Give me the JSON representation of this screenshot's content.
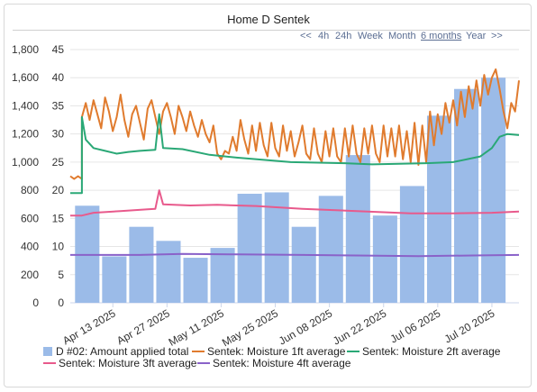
{
  "title": "Home D Sentek",
  "range_nav": {
    "back": "<<",
    "options": [
      "4h",
      "24h",
      "Week",
      "Month",
      "6 months",
      "Year"
    ],
    "active": "6 months",
    "forward": ">>"
  },
  "chart_data": {
    "type": "bar+line",
    "title": "Home D Sentek",
    "x_axis": {
      "type": "date",
      "range": [
        "2025-04-02",
        "2025-07-27"
      ],
      "tick_labels": [
        "Apr 13 2025",
        "Apr 27 2025",
        "May 11 2025",
        "May 25 2025",
        "Jun 08 2025",
        "Jun 22 2025",
        "Jul 06 2025",
        "Jul 20 2025"
      ],
      "tick_dates": [
        "2025-04-13",
        "2025-04-27",
        "2025-05-11",
        "2025-05-25",
        "2025-06-08",
        "2025-06-22",
        "2025-07-06",
        "2025-07-20"
      ]
    },
    "y_axis_left": {
      "ticks": [
        "0",
        "200",
        "400",
        "600",
        "800",
        "1,000",
        "1,200",
        "1,400",
        "1,600",
        "1,800"
      ],
      "range": [
        0,
        1800
      ]
    },
    "y_axis_right": {
      "ticks": [
        "0",
        "5",
        "10",
        "15",
        "20",
        "25",
        "30",
        "35",
        "40",
        "45"
      ],
      "range": [
        0,
        45
      ]
    },
    "grid": true,
    "legend_position": "bottom",
    "bars": {
      "name": "D #02: Amount applied total",
      "color": "#9bbbe8",
      "axis": "left",
      "weeks": [
        {
          "start": "2025-04-03",
          "end": "2025-04-09",
          "value": 690
        },
        {
          "start": "2025-04-10",
          "end": "2025-04-16",
          "value": 330
        },
        {
          "start": "2025-04-17",
          "end": "2025-04-23",
          "value": 540
        },
        {
          "start": "2025-04-24",
          "end": "2025-04-30",
          "value": 440
        },
        {
          "start": "2025-05-01",
          "end": "2025-05-07",
          "value": 320
        },
        {
          "start": "2025-05-08",
          "end": "2025-05-14",
          "value": 390
        },
        {
          "start": "2025-05-15",
          "end": "2025-05-21",
          "value": 775
        },
        {
          "start": "2025-05-22",
          "end": "2025-05-28",
          "value": 785
        },
        {
          "start": "2025-05-29",
          "end": "2025-06-04",
          "value": 540
        },
        {
          "start": "2025-06-05",
          "end": "2025-06-11",
          "value": 760
        },
        {
          "start": "2025-06-12",
          "end": "2025-06-18",
          "value": 1050
        },
        {
          "start": "2025-06-19",
          "end": "2025-06-25",
          "value": 620
        },
        {
          "start": "2025-06-26",
          "end": "2025-07-02",
          "value": 830
        },
        {
          "start": "2025-07-03",
          "end": "2025-07-09",
          "value": 1330
        },
        {
          "start": "2025-07-10",
          "end": "2025-07-16",
          "value": 1520
        },
        {
          "start": "2025-07-17",
          "end": "2025-07-23",
          "value": 1600
        }
      ]
    },
    "series": [
      {
        "name": "Sentek: Moisture 1ft average",
        "color": "#e07b2e",
        "axis": "right",
        "points": [
          [
            "2025-04-02",
            22.5
          ],
          [
            "2025-04-03",
            22.0
          ],
          [
            "2025-04-04",
            22.5
          ],
          [
            "2025-04-05",
            22.0
          ],
          [
            "2025-04-05",
            33.0
          ],
          [
            "2025-04-06",
            35.5
          ],
          [
            "2025-04-07",
            32.5
          ],
          [
            "2025-04-08",
            36.0
          ],
          [
            "2025-04-09",
            33.5
          ],
          [
            "2025-04-10",
            31.0
          ],
          [
            "2025-04-11",
            36.5
          ],
          [
            "2025-04-12",
            34.0
          ],
          [
            "2025-04-13",
            30.5
          ],
          [
            "2025-04-14",
            33.0
          ],
          [
            "2025-04-15",
            37.0
          ],
          [
            "2025-04-16",
            32.5
          ],
          [
            "2025-04-17",
            29.5
          ],
          [
            "2025-04-18",
            33.5
          ],
          [
            "2025-04-19",
            35.0
          ],
          [
            "2025-04-20",
            32.0
          ],
          [
            "2025-04-21",
            29.0
          ],
          [
            "2025-04-22",
            34.5
          ],
          [
            "2025-04-23",
            36.0
          ],
          [
            "2025-04-24",
            33.0
          ],
          [
            "2025-04-25",
            30.0
          ],
          [
            "2025-04-26",
            34.0
          ],
          [
            "2025-04-27",
            35.5
          ],
          [
            "2025-04-28",
            33.0
          ],
          [
            "2025-04-29",
            30.0
          ],
          [
            "2025-04-30",
            35.0
          ],
          [
            "2025-05-01",
            33.0
          ],
          [
            "2025-05-02",
            30.5
          ],
          [
            "2025-05-03",
            34.0
          ],
          [
            "2025-05-04",
            31.5
          ],
          [
            "2025-05-05",
            29.5
          ],
          [
            "2025-05-06",
            32.5
          ],
          [
            "2025-05-07",
            30.0
          ],
          [
            "2025-05-08",
            28.5
          ],
          [
            "2025-05-09",
            31.5
          ],
          [
            "2025-05-10",
            26.5
          ],
          [
            "2025-05-11",
            25.5
          ],
          [
            "2025-05-12",
            27.0
          ],
          [
            "2025-05-13",
            26.5
          ],
          [
            "2025-05-14",
            29.5
          ],
          [
            "2025-05-15",
            27.0
          ],
          [
            "2025-05-16",
            32.5
          ],
          [
            "2025-05-17",
            29.0
          ],
          [
            "2025-05-18",
            26.5
          ],
          [
            "2025-05-19",
            31.5
          ],
          [
            "2025-05-20",
            27.0
          ],
          [
            "2025-05-21",
            32.0
          ],
          [
            "2025-05-22",
            28.0
          ],
          [
            "2025-05-23",
            26.0
          ],
          [
            "2025-05-24",
            32.0
          ],
          [
            "2025-05-25",
            27.5
          ],
          [
            "2025-05-26",
            26.0
          ],
          [
            "2025-05-27",
            31.5
          ],
          [
            "2025-05-28",
            27.0
          ],
          [
            "2025-05-29",
            30.5
          ],
          [
            "2025-05-30",
            26.0
          ],
          [
            "2025-05-31",
            28.5
          ],
          [
            "2025-06-01",
            31.5
          ],
          [
            "2025-06-02",
            26.5
          ],
          [
            "2025-06-03",
            25.5
          ],
          [
            "2025-06-04",
            31.0
          ],
          [
            "2025-06-05",
            26.5
          ],
          [
            "2025-06-06",
            25.0
          ],
          [
            "2025-06-07",
            30.5
          ],
          [
            "2025-06-08",
            26.0
          ],
          [
            "2025-06-09",
            31.0
          ],
          [
            "2025-06-10",
            26.0
          ],
          [
            "2025-06-11",
            25.0
          ],
          [
            "2025-06-12",
            31.0
          ],
          [
            "2025-06-13",
            26.0
          ],
          [
            "2025-06-14",
            31.5
          ],
          [
            "2025-06-15",
            26.5
          ],
          [
            "2025-06-16",
            25.0
          ],
          [
            "2025-06-17",
            31.0
          ],
          [
            "2025-06-18",
            26.5
          ],
          [
            "2025-06-19",
            31.5
          ],
          [
            "2025-06-20",
            26.5
          ],
          [
            "2025-06-21",
            25.0
          ],
          [
            "2025-06-22",
            31.5
          ],
          [
            "2025-06-23",
            26.0
          ],
          [
            "2025-06-24",
            31.0
          ],
          [
            "2025-06-25",
            26.0
          ],
          [
            "2025-06-26",
            31.5
          ],
          [
            "2025-06-27",
            25.5
          ],
          [
            "2025-06-28",
            30.5
          ],
          [
            "2025-06-29",
            25.0
          ],
          [
            "2025-06-30",
            32.0
          ],
          [
            "2025-07-01",
            24.5
          ],
          [
            "2025-07-02",
            31.5
          ],
          [
            "2025-07-03",
            25.0
          ],
          [
            "2025-07-04",
            34.0
          ],
          [
            "2025-07-05",
            28.0
          ],
          [
            "2025-07-06",
            33.5
          ],
          [
            "2025-07-07",
            30.0
          ],
          [
            "2025-07-08",
            35.5
          ],
          [
            "2025-07-09",
            32.0
          ],
          [
            "2025-07-10",
            36.0
          ],
          [
            "2025-07-11",
            31.5
          ],
          [
            "2025-07-12",
            37.5
          ],
          [
            "2025-07-13",
            33.0
          ],
          [
            "2025-07-14",
            38.5
          ],
          [
            "2025-07-15",
            34.5
          ],
          [
            "2025-07-16",
            39.5
          ],
          [
            "2025-07-17",
            35.0
          ],
          [
            "2025-07-18",
            40.5
          ],
          [
            "2025-07-19",
            37.0
          ],
          [
            "2025-07-20",
            40.0
          ],
          [
            "2025-07-21",
            41.5
          ],
          [
            "2025-07-22",
            38.0
          ],
          [
            "2025-07-23",
            34.0
          ],
          [
            "2025-07-24",
            31.0
          ],
          [
            "2025-07-25",
            35.5
          ],
          [
            "2025-07-26",
            34.0
          ],
          [
            "2025-07-27",
            39.5
          ]
        ]
      },
      {
        "name": "Sentek: Moisture 2ft average",
        "color": "#2aa876",
        "axis": "right",
        "points": [
          [
            "2025-04-02",
            19.5
          ],
          [
            "2025-04-05",
            19.5
          ],
          [
            "2025-04-05",
            33.0
          ],
          [
            "2025-04-06",
            29.0
          ],
          [
            "2025-04-08",
            27.5
          ],
          [
            "2025-04-11",
            27.0
          ],
          [
            "2025-04-14",
            26.5
          ],
          [
            "2025-04-17",
            26.8
          ],
          [
            "2025-04-20",
            27.0
          ],
          [
            "2025-04-24",
            27.2
          ],
          [
            "2025-04-25",
            33.5
          ],
          [
            "2025-04-26",
            27.5
          ],
          [
            "2025-05-01",
            27.3
          ],
          [
            "2025-05-08",
            26.3
          ],
          [
            "2025-05-15",
            25.8
          ],
          [
            "2025-05-22",
            25.4
          ],
          [
            "2025-05-29",
            25.0
          ],
          [
            "2025-06-05",
            24.9
          ],
          [
            "2025-06-12",
            24.8
          ],
          [
            "2025-06-19",
            24.6
          ],
          [
            "2025-06-26",
            24.7
          ],
          [
            "2025-07-03",
            24.8
          ],
          [
            "2025-07-10",
            25.0
          ],
          [
            "2025-07-17",
            26.0
          ],
          [
            "2025-07-20",
            27.5
          ],
          [
            "2025-07-22",
            29.5
          ],
          [
            "2025-07-24",
            30.0
          ],
          [
            "2025-07-27",
            29.8
          ]
        ]
      },
      {
        "name": "Sentek: Moisture 3ft average",
        "color": "#e85a8c",
        "axis": "right",
        "points": [
          [
            "2025-04-02",
            15.5
          ],
          [
            "2025-04-05",
            15.5
          ],
          [
            "2025-04-08",
            16.0
          ],
          [
            "2025-04-15",
            16.3
          ],
          [
            "2025-04-22",
            16.6
          ],
          [
            "2025-04-24",
            16.7
          ],
          [
            "2025-04-25",
            20.0
          ],
          [
            "2025-04-26",
            17.5
          ],
          [
            "2025-05-03",
            17.3
          ],
          [
            "2025-05-10",
            17.4
          ],
          [
            "2025-05-20",
            17.2
          ],
          [
            "2025-06-01",
            16.7
          ],
          [
            "2025-06-15",
            16.3
          ],
          [
            "2025-06-29",
            15.9
          ],
          [
            "2025-07-10",
            15.9
          ],
          [
            "2025-07-20",
            16.0
          ],
          [
            "2025-07-27",
            16.2
          ]
        ]
      },
      {
        "name": "Sentek: Moisture 4ft average",
        "color": "#8a62c9",
        "axis": "right",
        "points": [
          [
            "2025-04-02",
            8.5
          ],
          [
            "2025-04-20",
            8.5
          ],
          [
            "2025-05-01",
            8.7
          ],
          [
            "2025-05-15",
            8.6
          ],
          [
            "2025-06-01",
            8.5
          ],
          [
            "2025-06-15",
            8.4
          ],
          [
            "2025-07-01",
            8.3
          ],
          [
            "2025-07-15",
            8.4
          ],
          [
            "2025-07-27",
            8.5
          ]
        ]
      }
    ]
  }
}
